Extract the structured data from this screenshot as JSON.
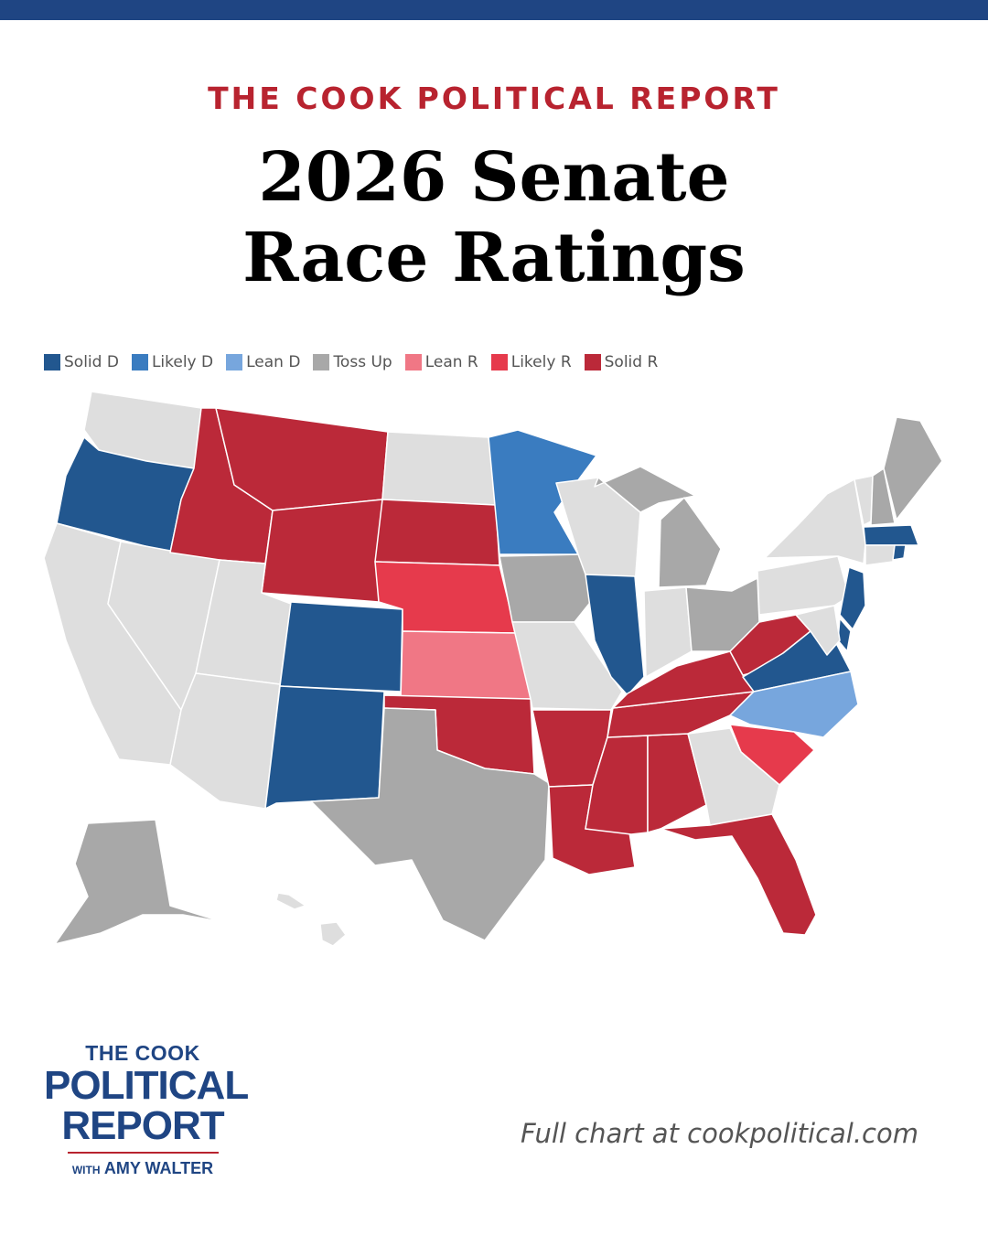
{
  "header": {
    "kicker": "THE COOK POLITICAL REPORT",
    "title_line1": "2026 Senate",
    "title_line2": "Race Ratings"
  },
  "legend": [
    {
      "label": "Solid D",
      "color": "#22578f"
    },
    {
      "label": "Likely D",
      "color": "#3a7cc0"
    },
    {
      "label": "Lean D",
      "color": "#77a6dd"
    },
    {
      "label": "Toss Up",
      "color": "#a8a8a8"
    },
    {
      "label": "Lean R",
      "color": "#f07785"
    },
    {
      "label": "Likely R",
      "color": "#e63a4c"
    },
    {
      "label": "Solid R",
      "color": "#bb2939"
    }
  ],
  "map": {
    "no_race_color": "#dedede",
    "ratings": {
      "Solid D": [
        "OR",
        "CO",
        "NM",
        "IL",
        "VA",
        "NJ",
        "DE",
        "MA",
        "RI"
      ],
      "Likely D": [
        "MN"
      ],
      "Lean D": [
        "NC"
      ],
      "Toss Up": [
        "IA",
        "TX",
        "MI",
        "OH",
        "ME",
        "NH",
        "AK"
      ],
      "Lean R": [
        "KS"
      ],
      "Likely R": [
        "NE",
        "SC"
      ],
      "Solid R": [
        "ID",
        "MT",
        "WY",
        "SD",
        "OK",
        "AR",
        "LA",
        "MS",
        "AL",
        "TN",
        "KY",
        "WV",
        "FL"
      ]
    }
  },
  "logo": {
    "line1": "THE COOK",
    "line2": "POLITICAL",
    "line3": "REPORT",
    "with": "WITH",
    "name": "AMY WALTER"
  },
  "footnote": "Full chart at cookpolitical.com"
}
